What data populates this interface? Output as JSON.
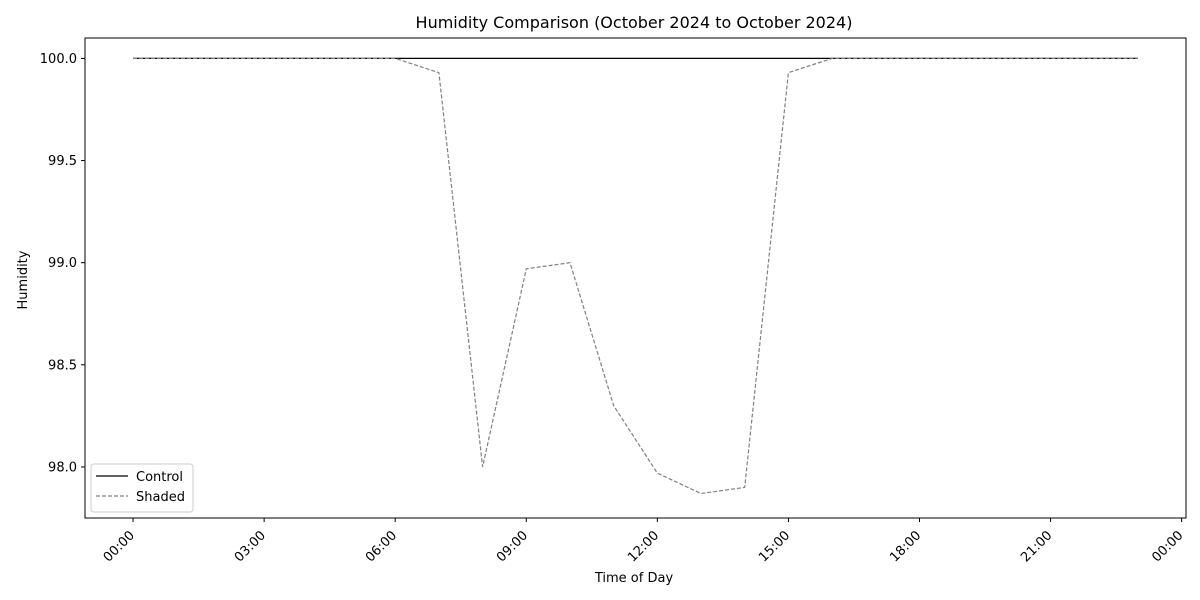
{
  "chart_data": {
    "type": "line",
    "title": "Humidity Comparison (October 2024 to October 2024)",
    "xlabel": "Time of Day",
    "ylabel": "Humidity",
    "x_ticks": [
      "00:00",
      "03:00",
      "06:00",
      "09:00",
      "12:00",
      "15:00",
      "18:00",
      "21:00",
      "00:00"
    ],
    "y_ticks": [
      "98.0",
      "98.5",
      "99.0",
      "99.5",
      "100.0"
    ],
    "x_range_hours": [
      -1.1,
      24.1
    ],
    "ylim": [
      97.75,
      100.1
    ],
    "grid": false,
    "legend_position": "lower-left",
    "x_hours": [
      0,
      1,
      2,
      3,
      4,
      5,
      6,
      7,
      8,
      9,
      10,
      11,
      12,
      13,
      14,
      15,
      16,
      17,
      18,
      19,
      20,
      21,
      22,
      23
    ],
    "series": [
      {
        "name": "Control",
        "color": "#000000",
        "style": "solid",
        "values": [
          100,
          100,
          100,
          100,
          100,
          100,
          100,
          100,
          100,
          100,
          100,
          100,
          100,
          100,
          100,
          100,
          100,
          100,
          100,
          100,
          100,
          100,
          100,
          100
        ]
      },
      {
        "name": "Shaded",
        "color": "#808080",
        "style": "dashed",
        "values": [
          100,
          100,
          100,
          100,
          100,
          100,
          100,
          99.93,
          98.0,
          98.97,
          99.0,
          98.3,
          97.97,
          97.87,
          97.9,
          99.93,
          100,
          100,
          100,
          100,
          100,
          100,
          100,
          100
        ]
      }
    ]
  }
}
